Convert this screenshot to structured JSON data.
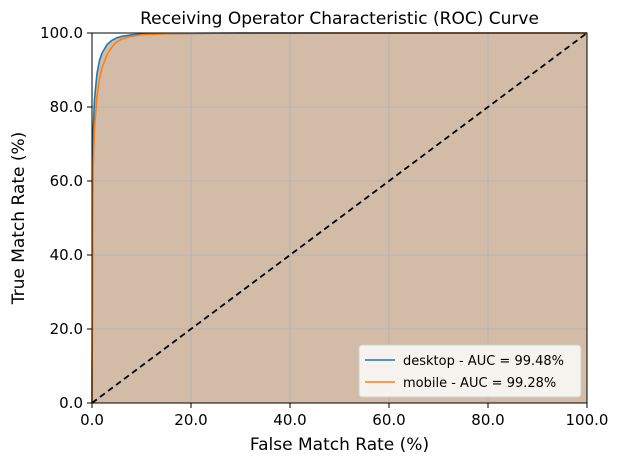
{
  "chart_data": {
    "type": "line",
    "title": "Receiving Operator Characteristic (ROC) Curve",
    "xlabel": "False Match Rate (%)",
    "ylabel": "True Match Rate (%)",
    "xlim": [
      0,
      100
    ],
    "ylim": [
      0,
      100
    ],
    "xticks": [
      "0.0",
      "20.0",
      "40.0",
      "60.0",
      "80.0",
      "100.0"
    ],
    "yticks": [
      "0.0",
      "20.0",
      "40.0",
      "60.0",
      "80.0",
      "100.0"
    ],
    "grid": true,
    "legend_position": "lower-right",
    "area_fill_color": "#d2bca8",
    "series": [
      {
        "name": "desktop - AUC = 99.48%",
        "color": "#1f77b4",
        "x": [
          0,
          0.2,
          0.5,
          1,
          1.5,
          2,
          3,
          4,
          5,
          6,
          8,
          10,
          15,
          20,
          30,
          50,
          100
        ],
        "y": [
          0,
          72,
          82,
          89,
          92.5,
          94.5,
          96.8,
          98,
          98.7,
          99.1,
          99.5,
          99.7,
          99.85,
          99.92,
          99.97,
          100,
          100
        ]
      },
      {
        "name": "mobile - AUC = 99.28%",
        "color": "#ff7f0e",
        "x": [
          0,
          0.2,
          0.5,
          1,
          1.5,
          2,
          3,
          4,
          5,
          6,
          8,
          10,
          15,
          20,
          30,
          50,
          100
        ],
        "y": [
          0,
          62,
          74,
          83,
          87.5,
          90.5,
          94,
          96.2,
          97.6,
          98.4,
          99.1,
          99.5,
          99.8,
          99.9,
          99.96,
          100,
          100
        ]
      },
      {
        "name": "",
        "color": "#000000",
        "dashed": true,
        "x": [
          0,
          100
        ],
        "y": [
          0,
          100
        ]
      }
    ]
  }
}
